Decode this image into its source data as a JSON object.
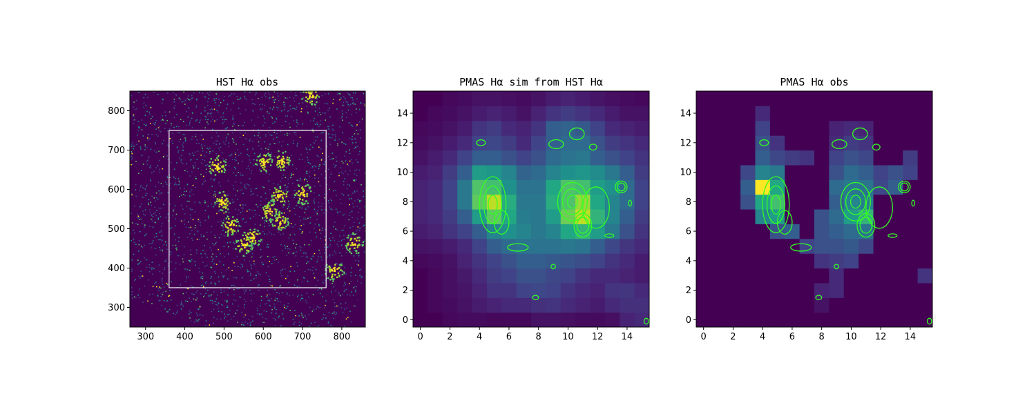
{
  "colors": {
    "background_dark": "#440154",
    "viridis_low": "#46327e",
    "viridis_mid": "#21918c",
    "viridis_high": "#5ec962",
    "viridis_peak": "#fde725",
    "contour": "#33ff22",
    "box": "#ffffff"
  },
  "chart_data": [
    {
      "type": "heatmap",
      "title": "HST Hα obs",
      "xlim": [
        260,
        860
      ],
      "ylim": [
        250,
        850
      ],
      "xticks": [
        300,
        400,
        500,
        600,
        700,
        800
      ],
      "yticks": [
        300,
        400,
        500,
        600,
        700,
        800
      ],
      "xtick_labels": [
        "300",
        "400",
        "500",
        "600",
        "700",
        "800"
      ],
      "ytick_labels": [
        "300",
        "400",
        "500",
        "600",
        "700",
        "800"
      ],
      "overlay_box": {
        "x0": 360,
        "x1": 760,
        "y0": 350,
        "y1": 750
      },
      "bright_regions": [
        {
          "x": 495,
          "y": 570
        },
        {
          "x": 515,
          "y": 510
        },
        {
          "x": 640,
          "y": 585
        },
        {
          "x": 615,
          "y": 545
        },
        {
          "x": 640,
          "y": 520
        },
        {
          "x": 700,
          "y": 590
        },
        {
          "x": 600,
          "y": 670
        },
        {
          "x": 645,
          "y": 675
        },
        {
          "x": 480,
          "y": 660
        },
        {
          "x": 830,
          "y": 465
        },
        {
          "x": 780,
          "y": 395
        },
        {
          "x": 720,
          "y": 840
        },
        {
          "x": 550,
          "y": 460
        },
        {
          "x": 570,
          "y": 480
        }
      ]
    },
    {
      "type": "heatmap",
      "title": "PMAS Hα sim from HST Hα",
      "xlim": [
        -0.5,
        15.5
      ],
      "ylim": [
        -0.5,
        15.5
      ],
      "xticks": [
        0,
        2,
        4,
        6,
        8,
        10,
        12,
        14
      ],
      "yticks": [
        0,
        2,
        4,
        6,
        8,
        10,
        12,
        14
      ],
      "xtick_labels": [
        "0",
        "2",
        "4",
        "6",
        "8",
        "10",
        "12",
        "14"
      ],
      "ytick_labels": [
        "0",
        "2",
        "4",
        "6",
        "8",
        "10",
        "12",
        "14"
      ],
      "grid": [
        [
          0.0,
          0.0,
          0.02,
          0.03,
          0.03,
          0.02,
          0.02,
          0.02,
          0.05,
          0.05,
          0.04,
          0.03,
          0.03,
          0.04,
          0.1,
          0.12
        ],
        [
          0.0,
          0.02,
          0.03,
          0.05,
          0.08,
          0.1,
          0.12,
          0.12,
          0.14,
          0.15,
          0.12,
          0.1,
          0.08,
          0.12,
          0.14,
          0.14
        ],
        [
          0.0,
          0.02,
          0.04,
          0.06,
          0.1,
          0.15,
          0.15,
          0.2,
          0.22,
          0.2,
          0.15,
          0.12,
          0.1,
          0.15,
          0.16,
          0.12
        ],
        [
          0.0,
          0.02,
          0.04,
          0.07,
          0.12,
          0.18,
          0.2,
          0.25,
          0.25,
          0.22,
          0.2,
          0.15,
          0.12,
          0.12,
          0.1,
          0.08
        ],
        [
          0.02,
          0.03,
          0.05,
          0.1,
          0.15,
          0.2,
          0.25,
          0.3,
          0.3,
          0.28,
          0.26,
          0.24,
          0.2,
          0.15,
          0.12,
          0.08
        ],
        [
          0.05,
          0.06,
          0.08,
          0.12,
          0.2,
          0.3,
          0.35,
          0.38,
          0.38,
          0.38,
          0.4,
          0.38,
          0.3,
          0.22,
          0.16,
          0.12
        ],
        [
          0.08,
          0.1,
          0.15,
          0.2,
          0.3,
          0.45,
          0.5,
          0.45,
          0.4,
          0.45,
          0.6,
          0.65,
          0.55,
          0.4,
          0.25,
          0.15
        ],
        [
          0.1,
          0.12,
          0.18,
          0.3,
          0.55,
          0.75,
          0.6,
          0.42,
          0.4,
          0.55,
          0.78,
          0.9,
          0.65,
          0.45,
          0.3,
          0.18
        ],
        [
          0.1,
          0.12,
          0.2,
          0.4,
          0.75,
          0.9,
          0.62,
          0.4,
          0.4,
          0.62,
          0.72,
          0.85,
          0.6,
          0.45,
          0.35,
          0.2
        ],
        [
          0.1,
          0.12,
          0.2,
          0.4,
          0.72,
          0.7,
          0.5,
          0.38,
          0.38,
          0.6,
          0.72,
          0.7,
          0.55,
          0.5,
          0.35,
          0.2
        ],
        [
          0.08,
          0.1,
          0.18,
          0.3,
          0.55,
          0.52,
          0.45,
          0.32,
          0.35,
          0.45,
          0.5,
          0.52,
          0.48,
          0.4,
          0.3,
          0.18
        ],
        [
          0.05,
          0.08,
          0.12,
          0.2,
          0.3,
          0.3,
          0.25,
          0.2,
          0.25,
          0.35,
          0.38,
          0.4,
          0.3,
          0.25,
          0.2,
          0.15
        ],
        [
          0.03,
          0.05,
          0.08,
          0.12,
          0.2,
          0.22,
          0.18,
          0.12,
          0.2,
          0.3,
          0.35,
          0.35,
          0.25,
          0.18,
          0.15,
          0.12
        ],
        [
          0.02,
          0.03,
          0.05,
          0.08,
          0.15,
          0.18,
          0.12,
          0.1,
          0.15,
          0.3,
          0.32,
          0.28,
          0.2,
          0.12,
          0.1,
          0.08
        ],
        [
          0.0,
          0.02,
          0.03,
          0.05,
          0.08,
          0.1,
          0.08,
          0.05,
          0.1,
          0.15,
          0.18,
          0.15,
          0.12,
          0.08,
          0.05,
          0.05
        ],
        [
          0.0,
          0.0,
          0.02,
          0.03,
          0.05,
          0.05,
          0.04,
          0.03,
          0.05,
          0.08,
          0.1,
          0.08,
          0.06,
          0.04,
          0.03,
          0.02
        ]
      ]
    },
    {
      "type": "heatmap",
      "title": "PMAS Hα obs",
      "xlim": [
        -0.5,
        15.5
      ],
      "ylim": [
        -0.5,
        15.5
      ],
      "xticks": [
        0,
        2,
        4,
        6,
        8,
        10,
        12,
        14
      ],
      "yticks": [
        0,
        2,
        4,
        6,
        8,
        10,
        12,
        14
      ],
      "xtick_labels": [
        "0",
        "2",
        "4",
        "6",
        "8",
        "10",
        "12",
        "14"
      ],
      "ytick_labels": [
        "0",
        "2",
        "4",
        "6",
        "8",
        "10",
        "12",
        "14"
      ],
      "grid": [
        [
          0,
          0,
          0,
          0,
          0,
          0,
          0,
          0,
          0,
          0,
          0,
          0,
          0,
          0,
          0,
          0
        ],
        [
          0,
          0,
          0,
          0,
          0,
          0,
          0,
          0,
          0.05,
          0,
          0,
          0,
          0,
          0,
          0,
          0
        ],
        [
          0,
          0,
          0,
          0,
          0,
          0,
          0,
          0,
          0.1,
          0.12,
          0,
          0,
          0,
          0,
          0,
          0
        ],
        [
          0,
          0,
          0,
          0,
          0,
          0,
          0,
          0,
          0,
          0.12,
          0,
          0,
          0,
          0,
          0,
          0.15
        ],
        [
          0,
          0,
          0,
          0,
          0,
          0,
          0,
          0,
          0.15,
          0.18,
          0.2,
          0,
          0,
          0,
          0,
          0
        ],
        [
          0,
          0,
          0,
          0,
          0,
          0,
          0,
          0.2,
          0.25,
          0.25,
          0.28,
          0.22,
          0,
          0,
          0,
          0
        ],
        [
          0,
          0,
          0,
          0,
          0,
          0.25,
          0.3,
          0,
          0.25,
          0.3,
          0.35,
          0.38,
          0,
          0,
          0,
          0
        ],
        [
          0,
          0,
          0,
          0,
          0.45,
          0.55,
          0,
          0,
          0.25,
          0.35,
          0.55,
          0.65,
          0,
          0,
          0,
          0
        ],
        [
          0,
          0,
          0,
          0.25,
          0.6,
          0.7,
          0,
          0,
          0,
          0.3,
          0.45,
          0.42,
          0,
          0,
          0,
          0
        ],
        [
          0,
          0,
          0,
          0.3,
          1.0,
          0.6,
          0,
          0,
          0,
          0.35,
          0.4,
          0.38,
          0.22,
          0.3,
          0,
          0
        ],
        [
          0,
          0,
          0,
          0.22,
          0.45,
          0.4,
          0,
          0,
          0,
          0.25,
          0.35,
          0.3,
          0.2,
          0.25,
          0.2,
          0
        ],
        [
          0,
          0,
          0,
          0,
          0.3,
          0.22,
          0.18,
          0.15,
          0,
          0.2,
          0.25,
          0.22,
          0,
          0,
          0.18,
          0
        ],
        [
          0,
          0,
          0,
          0,
          0.25,
          0.15,
          0,
          0,
          0,
          0.12,
          0.18,
          0.15,
          0,
          0,
          0,
          0
        ],
        [
          0,
          0,
          0,
          0,
          0.2,
          0,
          0,
          0,
          0,
          0.1,
          0.12,
          0.1,
          0,
          0,
          0,
          0
        ],
        [
          0,
          0,
          0,
          0,
          0.12,
          0,
          0,
          0,
          0,
          0,
          0,
          0,
          0,
          0,
          0,
          0
        ],
        [
          0,
          0,
          0,
          0,
          0,
          0,
          0,
          0,
          0,
          0,
          0,
          0,
          0,
          0,
          0,
          0
        ]
      ]
    }
  ]
}
